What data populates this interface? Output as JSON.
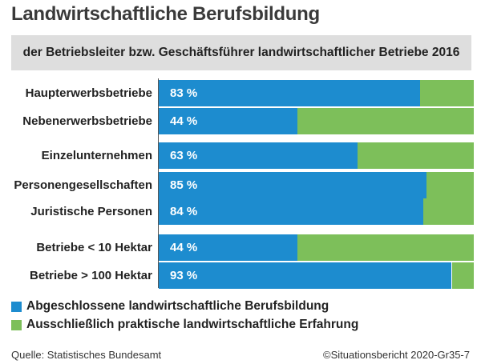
{
  "chart_data": {
    "type": "bar",
    "orientation": "horizontal",
    "stacked": true,
    "title": "Landwirtschaftliche Berufsbildung",
    "subtitle": "der Betriebsleiter bzw. Geschäftsführer landwirtschaftlicher Betriebe 2016",
    "categories": [
      "Haupterwerbsbetriebe",
      "Nebenerwerbsbetriebe",
      "Einzelunternehmen",
      "Personengesellschaften",
      "Juristische Personen",
      "Betriebe < 10 Hektar",
      "Betriebe > 100 Hektar"
    ],
    "value_labels": [
      "83 %",
      "44 %",
      "63 %",
      "85 %",
      "84 %",
      "44 %",
      "93 %"
    ],
    "series": [
      {
        "name": "Abgeschlossene landwirtschaftliche Berufsbildung",
        "color": "#1d8ccf",
        "values": [
          83,
          44,
          63,
          85,
          84,
          44,
          93
        ]
      },
      {
        "name": "Ausschließlich praktische landwirtschaftliche Erfahrung",
        "color": "#7dbf5a",
        "values": [
          17,
          56,
          37,
          15,
          16,
          56,
          7
        ]
      }
    ],
    "xlim": [
      0,
      100
    ],
    "unit": "%",
    "grid": false,
    "legend_position": "bottom-left"
  },
  "footer": {
    "source": "Quelle: Statistisches Bundesamt",
    "credit": "©Situationsbericht 2020-Gr35-7"
  }
}
